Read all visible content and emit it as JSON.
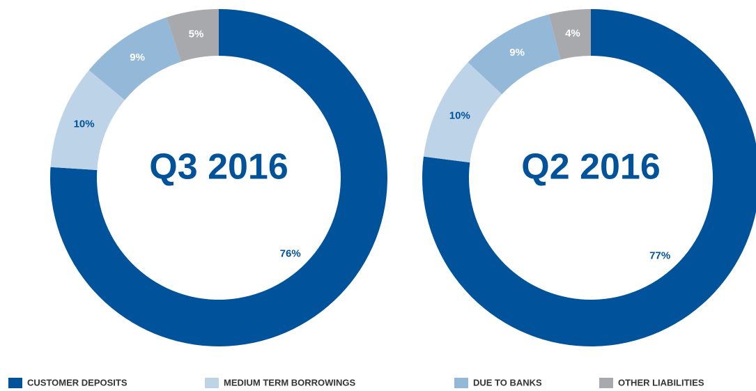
{
  "chart_data": [
    {
      "type": "donut",
      "title": "Q3 2016",
      "values": [
        76,
        10,
        9,
        5
      ],
      "value_labels": [
        "76%",
        "10%",
        "9%",
        "5%"
      ]
    },
    {
      "type": "donut",
      "title": "Q2 2016",
      "values": [
        77,
        10,
        9,
        4
      ],
      "value_labels": [
        "77%",
        "10%",
        "9%",
        "4%"
      ]
    }
  ],
  "legend": {
    "labels": [
      "CUSTOMER DEPOSITS",
      "MEDIUM TERM BORROWINGS",
      "DUE TO BANKS",
      "OTHER LIABILITIES"
    ],
    "colors": [
      "#00539b",
      "#bcd3e8",
      "#94b9d8",
      "#a7a9ac"
    ]
  }
}
